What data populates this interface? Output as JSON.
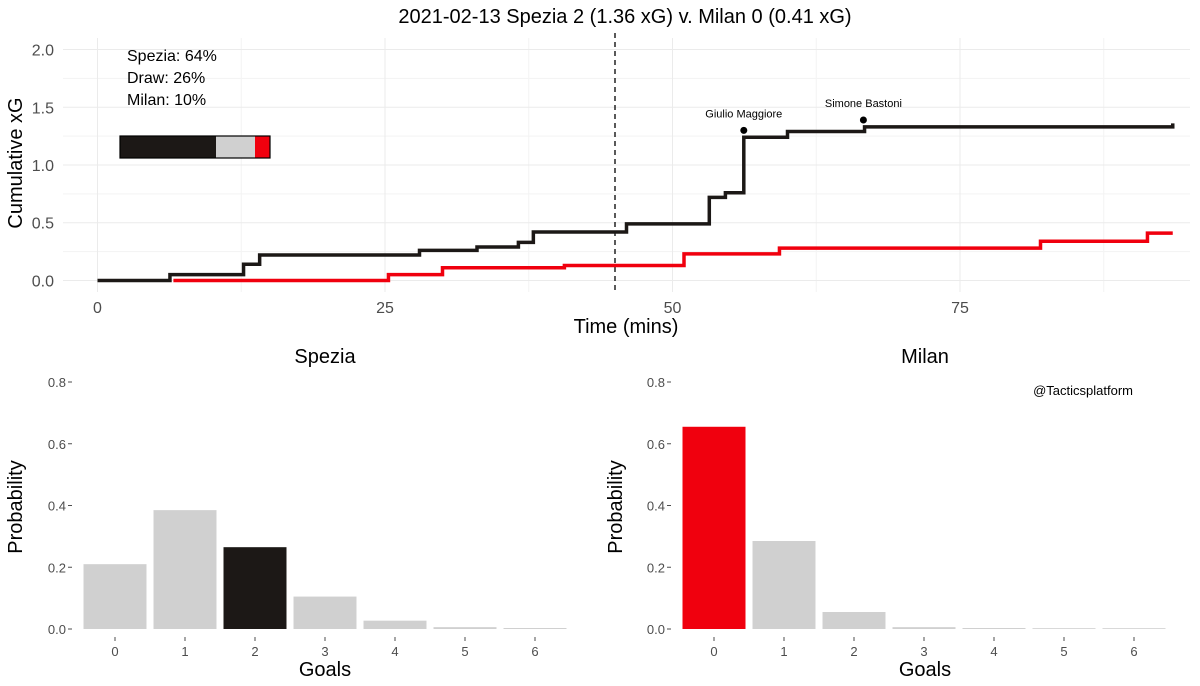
{
  "chart_data": [
    {
      "type": "line",
      "title": "2021-02-13 Spezia 2 (1.36 xG) v. Milan 0 (0.41 xG)",
      "xlabel": "Time (mins)",
      "ylabel": "Cumulative xG",
      "xlim": [
        -3,
        95
      ],
      "ylim": [
        -0.1,
        2.1
      ],
      "x_ticks": [
        "0",
        "25",
        "50",
        "75"
      ],
      "y_ticks": [
        "0.0",
        "0.5",
        "1.0",
        "1.5",
        "2.0"
      ],
      "grid": true,
      "half_time_line": 45,
      "series": [
        {
          "name": "Spezia",
          "color": "#1c1816",
          "steps": [
            [
              0,
              0
            ],
            [
              6.3,
              0.05
            ],
            [
              12.7,
              0.14
            ],
            [
              14.1,
              0.22
            ],
            [
              28,
              0.26
            ],
            [
              33,
              0.29
            ],
            [
              36.6,
              0.33
            ],
            [
              37.9,
              0.42
            ],
            [
              46,
              0.49
            ],
            [
              53.2,
              0.72
            ],
            [
              54.6,
              0.76
            ],
            [
              56.2,
              1.24
            ],
            [
              60,
              1.29
            ],
            [
              66.7,
              1.33
            ],
            [
              93.5,
              1.36
            ]
          ],
          "goals": [
            {
              "minute": 56.2,
              "xg": 1.3,
              "player": "Giulio Maggiore"
            },
            {
              "minute": 66.6,
              "xg": 1.39,
              "player": "Simone Bastoni"
            }
          ]
        },
        {
          "name": "Milan",
          "color": "#f0000e",
          "steps": [
            [
              6.6,
              0
            ],
            [
              25.3,
              0.05
            ],
            [
              30,
              0.11
            ],
            [
              40.6,
              0.13
            ],
            [
              51,
              0.23
            ],
            [
              59.3,
              0.28
            ],
            [
              82,
              0.34
            ],
            [
              91.3,
              0.41
            ],
            [
              93.5,
              0.41
            ]
          ]
        }
      ],
      "annotations": [
        "Spezia: 64%",
        "Draw: 26%",
        "Milan: 10%"
      ],
      "outcome_bar": {
        "Spezia": 0.64,
        "Draw": 0.26,
        "Milan": 0.1,
        "colors": [
          "#1c1816",
          "#d0d0d0",
          "#f0000e"
        ]
      }
    },
    {
      "type": "bar",
      "title": "Spezia",
      "xlabel": "Goals",
      "ylabel": "Probability",
      "categories": [
        "0",
        "1",
        "2",
        "3",
        "4",
        "5",
        "6"
      ],
      "values": [
        0.21,
        0.385,
        0.265,
        0.105,
        0.027,
        0.006,
        0.001
      ],
      "highlight_index": 2,
      "highlight_color": "#1c1816",
      "bar_color": "#d0d0d0",
      "ylim": [
        0,
        0.8
      ],
      "y_ticks": [
        "0.0",
        "0.2",
        "0.4",
        "0.6",
        "0.8"
      ]
    },
    {
      "type": "bar",
      "title": "Milan",
      "xlabel": "Goals",
      "ylabel": "Probability",
      "categories": [
        "0",
        "1",
        "2",
        "3",
        "4",
        "5",
        "6"
      ],
      "values": [
        0.655,
        0.285,
        0.055,
        0.006,
        0.001,
        0.0,
        0.0
      ],
      "highlight_index": 0,
      "highlight_color": "#f0000e",
      "bar_color": "#d0d0d0",
      "ylim": [
        0,
        0.8
      ],
      "y_ticks": [
        "0.0",
        "0.2",
        "0.4",
        "0.6",
        "0.8"
      ]
    }
  ],
  "credit": "@Tacticsplatform"
}
